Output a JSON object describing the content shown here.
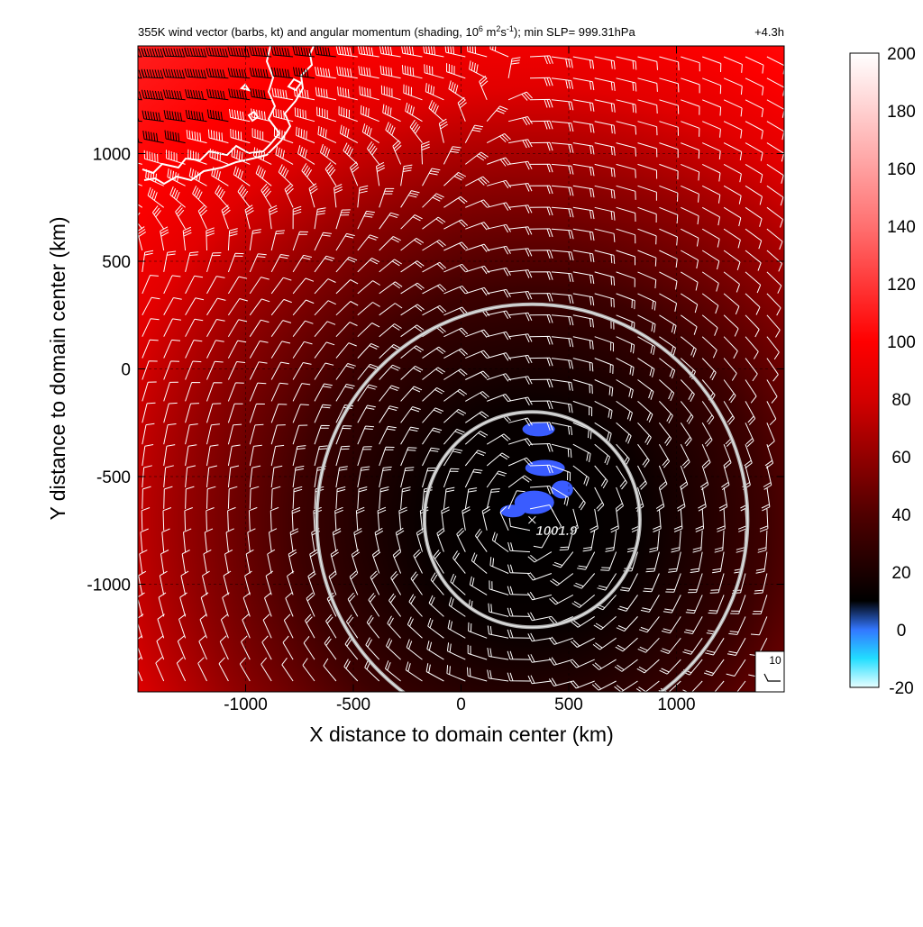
{
  "figure": {
    "title": "355K wind vector (barbs, kt) and angular momentum (shading, 10",
    "title_exp1": "6",
    "title_mid": " m",
    "title_exp2": "2",
    "title_s": "s",
    "title_exp3": "-1",
    "title_end": "); min SLP= 999.31hPa",
    "forecast_time": "+4.3h",
    "min_slp_label": "1001.9",
    "barb_reference_label": "10"
  },
  "axes": {
    "xlabel": "X distance to domain center (km)",
    "ylabel": "Y distance to domain center (km)",
    "xlim": [
      -1500,
      1500
    ],
    "ylim": [
      -1500,
      1500
    ],
    "xticks": [
      -1000,
      -500,
      0,
      500,
      1000
    ],
    "yticks": [
      1000,
      500,
      0,
      -500,
      -1000
    ],
    "xtick_labels": [
      "-1000",
      "-500",
      "0",
      "500",
      "1000"
    ],
    "ytick_labels": [
      "1000",
      "500",
      "0",
      "-500",
      "-1000"
    ]
  },
  "colorbar": {
    "ticks": [
      200,
      180,
      160,
      140,
      120,
      100,
      80,
      60,
      40,
      20,
      0,
      -20
    ],
    "tick_labels": [
      "200",
      "180",
      "160",
      "140",
      "120",
      "100",
      "80",
      "60",
      "40",
      "20",
      "0",
      "-20"
    ],
    "range": [
      -20,
      200
    ],
    "colors": {
      "-20": "#e8ffff",
      "-10": "#22ddff",
      "0": "#3377ff",
      "10": "#000000",
      "40": "#500000",
      "80": "#d40000",
      "100": "#ff0000",
      "140": "#ff7070",
      "200": "#ffffff"
    }
  },
  "chart_data": {
    "type": "heatmap",
    "field": "angular momentum (10^6 m2 s-1)",
    "storm_center_km": [
      330,
      -700
    ],
    "range_rings_km": [
      500,
      1000
    ],
    "min_slp_hpa": 999.31,
    "min_slp_marker_hpa": 1001.9,
    "negative_regions_center_km": [
      [
        360,
        -280
      ],
      [
        390,
        -460
      ],
      [
        470,
        -560
      ],
      [
        340,
        -620
      ],
      [
        240,
        -660
      ]
    ],
    "barb_reference_kt": 10,
    "barb_spacing_km": 100,
    "coastline_color": "#ffffff"
  }
}
